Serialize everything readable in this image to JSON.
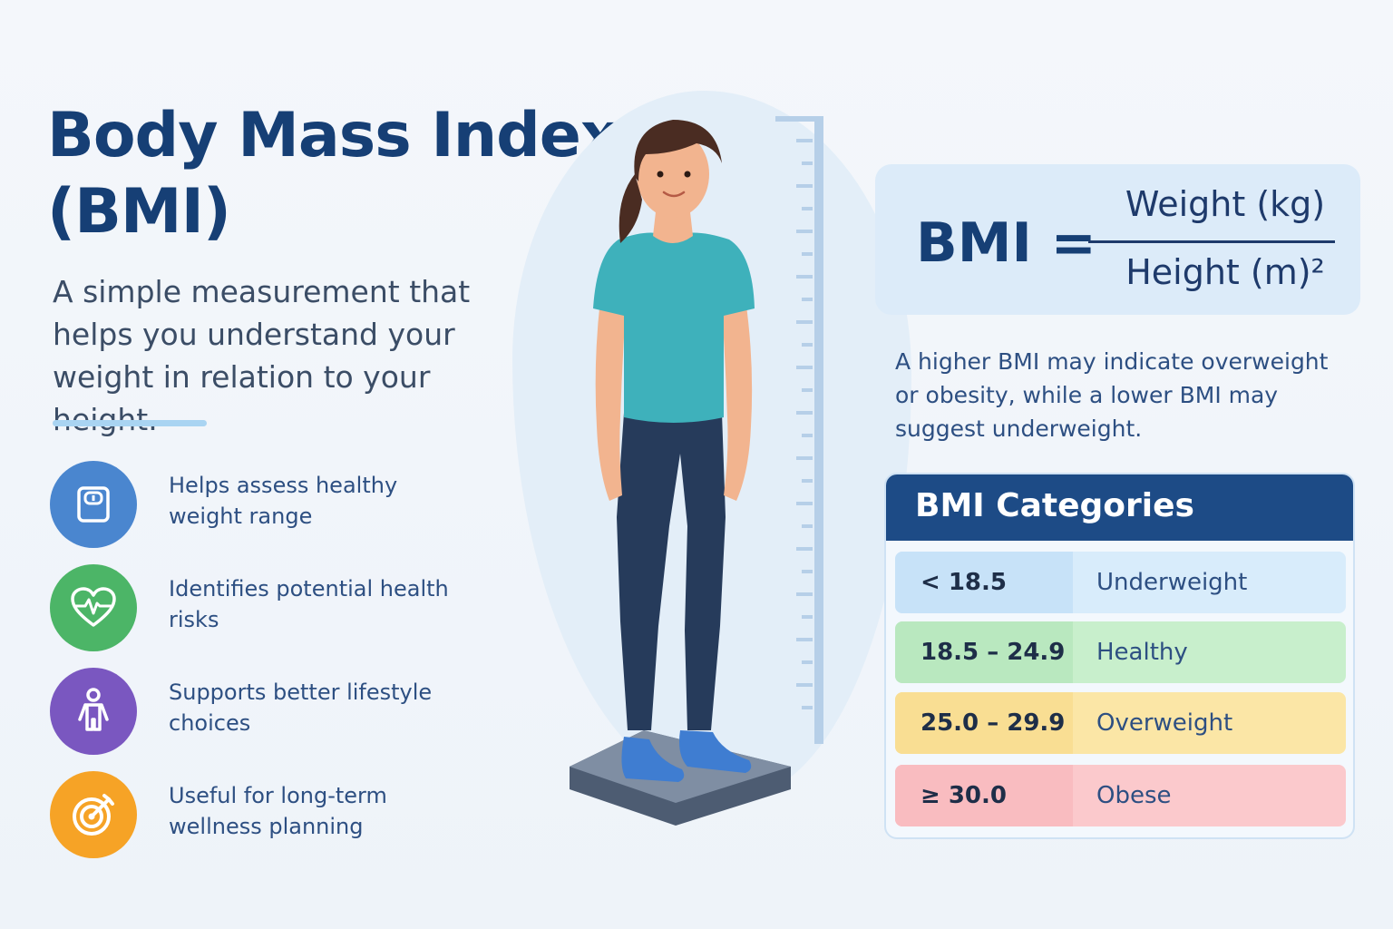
{
  "header": {
    "title_line1": "Body Mass Index",
    "title_line2": "(BMI)",
    "subtitle": "A simple measurement that helps you understand your weight in relation to your height."
  },
  "features": [
    {
      "icon": "scale-icon",
      "text": "Helps assess healthy weight range",
      "color": "#4a86cf"
    },
    {
      "icon": "heart-pulse-icon",
      "text": "Identifies potential health risks",
      "color": "#4cb567"
    },
    {
      "icon": "person-icon",
      "text": "Supports better lifestyle choices",
      "color": "#7a57c0"
    },
    {
      "icon": "target-icon",
      "text": "Useful for long-term wellness planning",
      "color": "#f6a326"
    }
  ],
  "formula": {
    "lhs": "BMI =",
    "numerator": "Weight (kg)",
    "denominator": "Height (m)²"
  },
  "note": "A higher BMI may indicate overweight or obesity, while a lower BMI may suggest underweight.",
  "categories": {
    "title": "BMI Categories",
    "rows": [
      {
        "range": "< 18.5",
        "label": "Underweight",
        "color": "#d8ecfb"
      },
      {
        "range": "18.5 – 24.9",
        "label": "Healthy",
        "color": "#c8efcc"
      },
      {
        "range": "25.0 – 29.9",
        "label": "Overweight",
        "color": "#fbe6a6"
      },
      {
        "range": "≥ 30.0",
        "label": "Obese",
        "color": "#fbc9cc"
      }
    ]
  }
}
